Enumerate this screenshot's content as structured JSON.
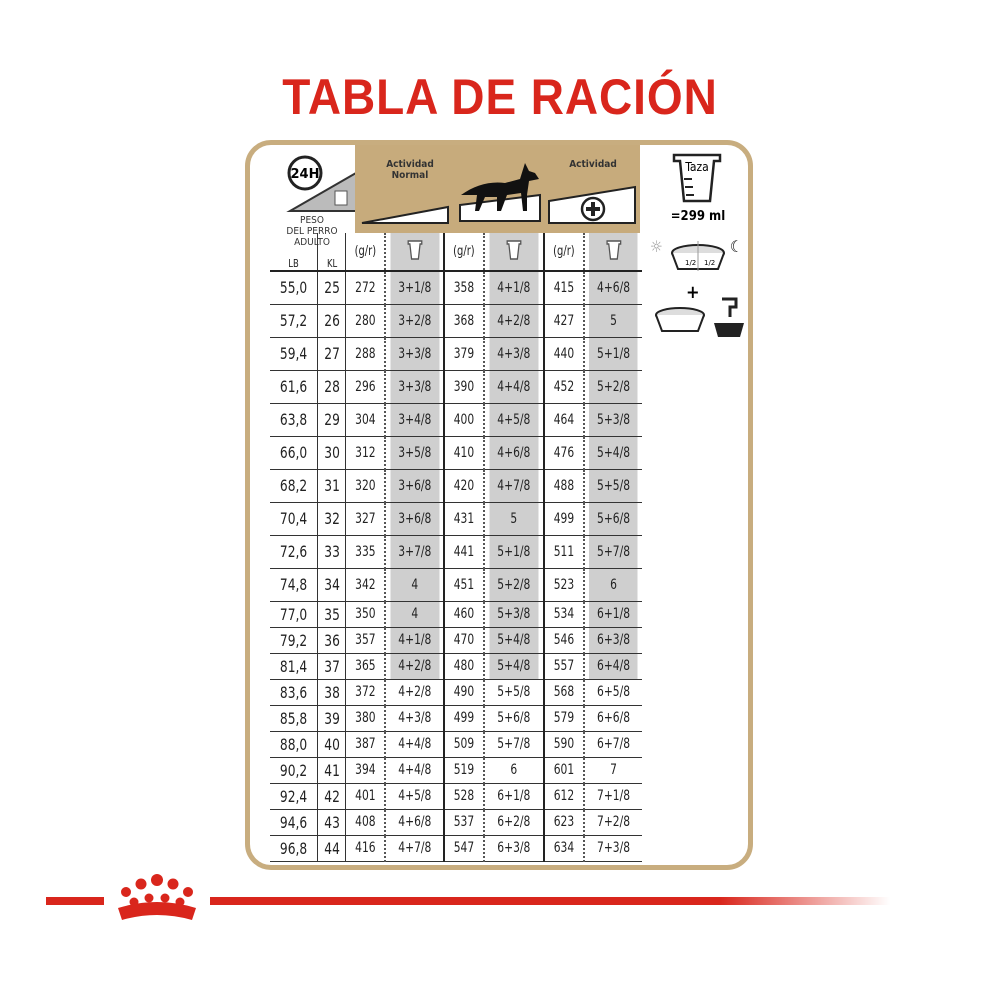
{
  "title": "TABLA DE RACIÓN",
  "header": {
    "clock_label": "24H",
    "weight_label": [
      "PESO",
      "DEL PERRO",
      "ADULTO"
    ],
    "lb": "LB",
    "kl": "KL",
    "activity_normal": [
      "Actividad",
      "Normal"
    ],
    "activity_plus": "Actividad",
    "unit": "(g/r)",
    "cup_label": "Taza",
    "cup_volume": "=299 ml"
  },
  "colors": {
    "brand_red": "#d9261c",
    "gold": "#c7ab7c",
    "shade": "#cfcfcf"
  },
  "rows": [
    [
      "55,0",
      "25",
      "272",
      "3+1/8",
      "358",
      "4+1/8",
      "415",
      "4+6/8"
    ],
    [
      "57,2",
      "26",
      "280",
      "3+2/8",
      "368",
      "4+2/8",
      "427",
      "5"
    ],
    [
      "59,4",
      "27",
      "288",
      "3+3/8",
      "379",
      "4+3/8",
      "440",
      "5+1/8"
    ],
    [
      "61,6",
      "28",
      "296",
      "3+3/8",
      "390",
      "4+4/8",
      "452",
      "5+2/8"
    ],
    [
      "63,8",
      "29",
      "304",
      "3+4/8",
      "400",
      "4+5/8",
      "464",
      "5+3/8"
    ],
    [
      "66,0",
      "30",
      "312",
      "3+5/8",
      "410",
      "4+6/8",
      "476",
      "5+4/8"
    ],
    [
      "68,2",
      "31",
      "320",
      "3+6/8",
      "420",
      "4+7/8",
      "488",
      "5+5/8"
    ],
    [
      "70,4",
      "32",
      "327",
      "3+6/8",
      "431",
      "5",
      "499",
      "5+6/8"
    ],
    [
      "72,6",
      "33",
      "335",
      "3+7/8",
      "441",
      "5+1/8",
      "511",
      "5+7/8"
    ],
    [
      "74,8",
      "34",
      "342",
      "4",
      "451",
      "5+2/8",
      "523",
      "6"
    ],
    [
      "77,0",
      "35",
      "350",
      "4",
      "460",
      "5+3/8",
      "534",
      "6+1/8"
    ],
    [
      "79,2",
      "36",
      "357",
      "4+1/8",
      "470",
      "5+4/8",
      "546",
      "6+3/8"
    ],
    [
      "81,4",
      "37",
      "365",
      "4+2/8",
      "480",
      "5+4/8",
      "557",
      "6+4/8"
    ],
    [
      "83,6",
      "38",
      "372",
      "4+2/8",
      "490",
      "5+5/8",
      "568",
      "6+5/8"
    ],
    [
      "85,8",
      "39",
      "380",
      "4+3/8",
      "499",
      "5+6/8",
      "579",
      "6+6/8"
    ],
    [
      "88,0",
      "40",
      "387",
      "4+4/8",
      "509",
      "5+7/8",
      "590",
      "6+7/8"
    ],
    [
      "90,2",
      "41",
      "394",
      "4+4/8",
      "519",
      "6",
      "601",
      "7"
    ],
    [
      "92,4",
      "42",
      "401",
      "4+5/8",
      "528",
      "6+1/8",
      "612",
      "7+1/8"
    ],
    [
      "94,6",
      "43",
      "408",
      "4+6/8",
      "537",
      "6+2/8",
      "623",
      "7+2/8"
    ],
    [
      "96,8",
      "44",
      "416",
      "4+7/8",
      "547",
      "6+3/8",
      "634",
      "7+3/8"
    ]
  ],
  "shaded_rows_count": 13,
  "bowl_labels": [
    "1/2",
    "1/2"
  ]
}
